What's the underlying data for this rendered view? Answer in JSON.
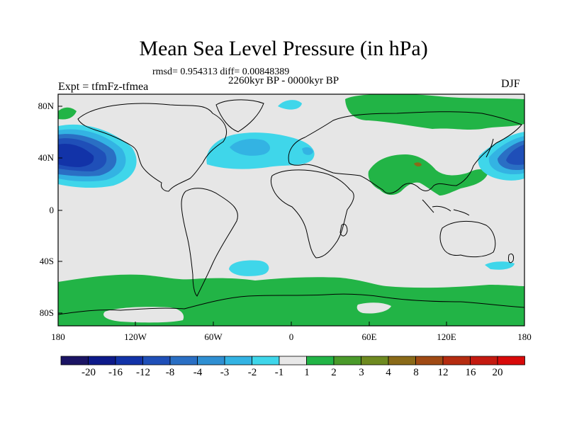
{
  "title": "Mean Sea Level Pressure (in hPa)",
  "stats_line": "rmsd= 0.954313 diff= 0.00848389",
  "period_line": "2260kyr BP - 0000kyr BP",
  "experiment_line": "Expt = tfmFz-tfmea",
  "season": "DJF",
  "lat_labels": [
    "80N",
    "40N",
    "0",
    "40S",
    "80S"
  ],
  "lon_labels": [
    "180",
    "120W",
    "60W",
    "0",
    "60E",
    "120E",
    "180"
  ],
  "colorbar": {
    "labels": [
      "-20",
      "-16",
      "-12",
      "-8",
      "-4",
      "-3",
      "-2",
      "-1",
      "1",
      "2",
      "3",
      "4",
      "8",
      "12",
      "16",
      "20"
    ],
    "colors": [
      "#1b1464",
      "#0d1a8a",
      "#1233a8",
      "#1f4fb8",
      "#2a6fc4",
      "#2f8fd2",
      "#33b3e3",
      "#3fd6ea",
      "#e8e8e8",
      "#22b446",
      "#4a9a2a",
      "#6e8a20",
      "#8a6a18",
      "#a04a14",
      "#b52c10",
      "#c41a10",
      "#d80a0a"
    ]
  },
  "colors": {
    "land_bg": "#e6e6e6",
    "coast": "#000000",
    "positive_green": "#22b446",
    "brown_patch": "#8a6a18",
    "light_blue": "#3fd6ea",
    "mid_blue": "#33b3e3",
    "blue": "#2a6fc4",
    "deep_blue": "#1f4fb8",
    "dark_blue": "#1233a8"
  }
}
